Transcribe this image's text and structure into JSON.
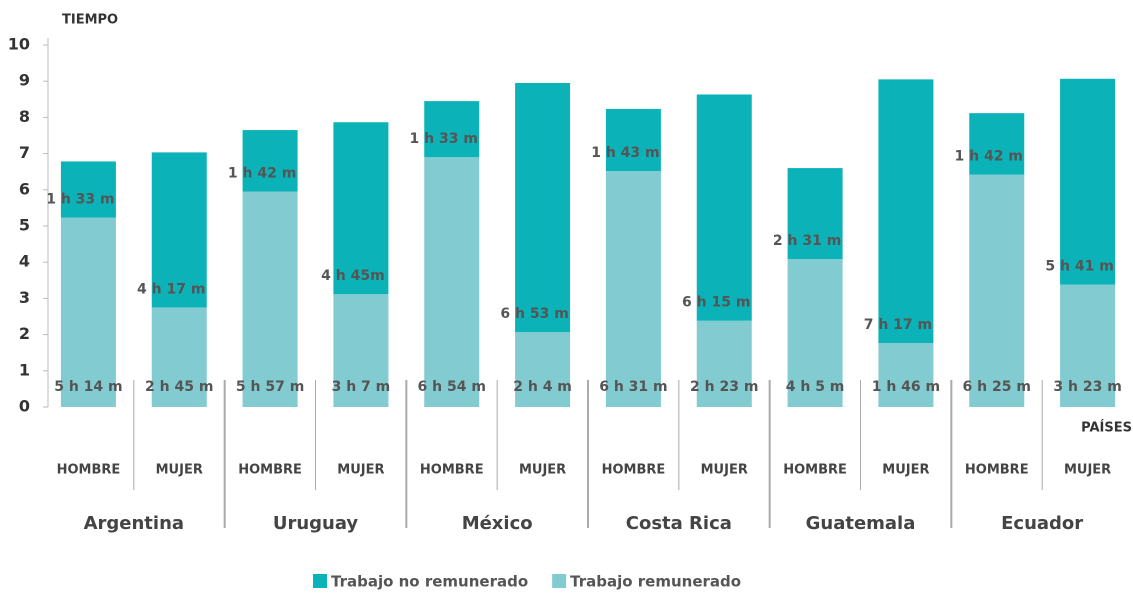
{
  "chart_data": {
    "type": "stacked_bar",
    "y_label": "TIEMPO",
    "x_label": "PAÍSES",
    "groups": [
      "Argentina",
      "Uruguay",
      "México",
      "Costa Rica",
      "Guatemala",
      "Ecuador"
    ],
    "categories": [
      "HOMBRE",
      "MUJER",
      "HOMBRE",
      "MUJER",
      "HOMBRE",
      "MUJER",
      "HOMBRE",
      "MUJER",
      "HOMBRE",
      "MUJER",
      "HOMBRE",
      "MUJER"
    ],
    "series": [
      {
        "name": "Trabajo remunerado",
        "color": "#82cbd0",
        "values": [
          5.2333,
          2.75,
          5.95,
          3.1167,
          6.9,
          2.0667,
          6.5167,
          2.3833,
          4.0833,
          1.7667,
          6.4167,
          3.3833
        ],
        "value_labels": [
          "5 h 14 m",
          "2 h 45 m",
          "5 h 57 m",
          "3 h 7 m",
          "6 h 54 m",
          "2 h 4 m",
          "6 h 31 m",
          "2 h 23 m",
          "4 h 5 m",
          "1 h 46 m",
          "6 h 25 m",
          "3 h 23 m"
        ]
      },
      {
        "name": "Trabajo no remunerado",
        "color": "#0bb3b8",
        "values": [
          1.55,
          4.2833,
          1.7,
          4.75,
          1.55,
          6.8833,
          1.7167,
          6.25,
          2.5167,
          7.2833,
          1.7,
          5.6833
        ],
        "value_labels": [
          "1 h 33 m",
          "4 h 17 m",
          "1 h 42 m",
          "4 h 45m",
          "1 h 33 m",
          "6 h 53 m",
          "1 h 43 m",
          "6 h 15 m",
          "2 h 31 m",
          "7 h 17 m",
          "1 h 42 m",
          "5 h 41 m"
        ]
      }
    ],
    "ylim": [
      0,
      10
    ],
    "yticks": [
      0,
      1,
      2,
      3,
      4,
      5,
      6,
      7,
      8,
      9,
      10
    ]
  }
}
